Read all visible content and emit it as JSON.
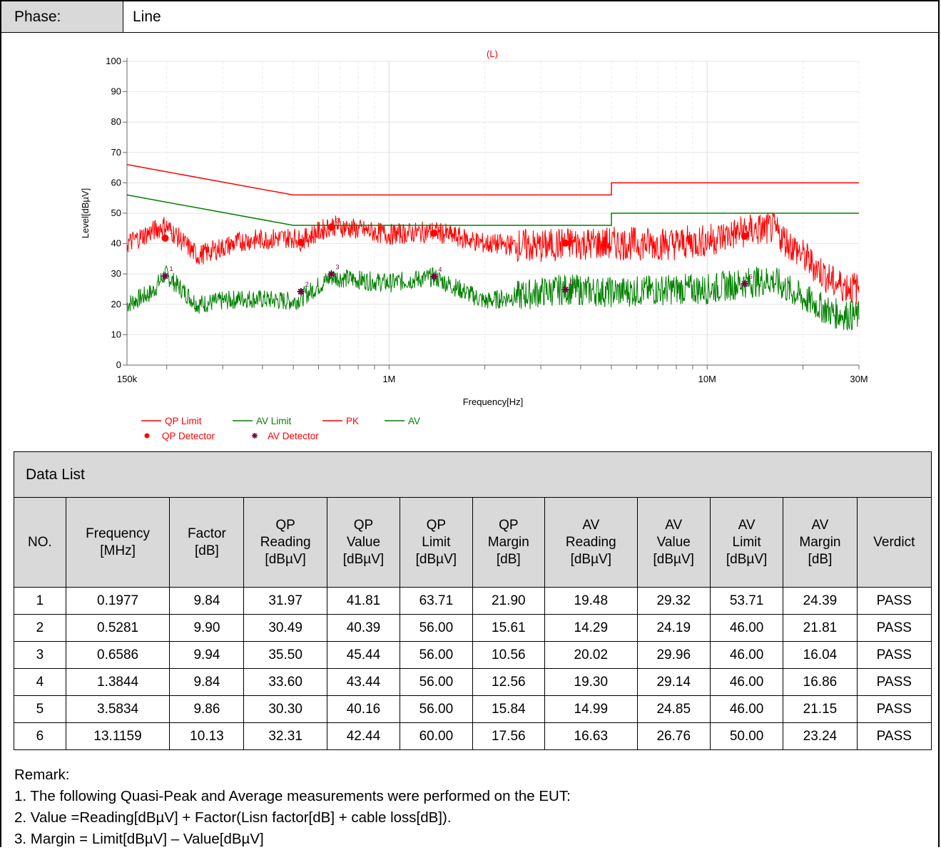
{
  "phase": {
    "label": "Phase:",
    "value": "Line"
  },
  "chart_data": {
    "type": "line",
    "title": "(L)",
    "xlabel": "Frequency[Hz]",
    "ylabel": "Level[dBµV]",
    "x_scale": "log",
    "xlim": [
      150000,
      30000000
    ],
    "ylim": [
      0,
      100
    ],
    "x_ticks": [
      {
        "value": 150000,
        "label": "150k"
      },
      {
        "value": 1000000,
        "label": "1M"
      },
      {
        "value": 10000000,
        "label": "10M"
      },
      {
        "value": 30000000,
        "label": "30M"
      }
    ],
    "y_ticks": [
      "0",
      "10",
      "20",
      "30",
      "40",
      "50",
      "60",
      "70",
      "80",
      "90",
      "100"
    ],
    "grid": true,
    "legend_position": "bottom-left",
    "colors": {
      "qp": "#ff0000",
      "av": "#008000",
      "av_marker": "#6b0a3c"
    },
    "series": [
      {
        "name": "QP Limit",
        "color": "#ff0000",
        "x": [
          150000,
          500000,
          5000000,
          5000000,
          30000000
        ],
        "values": [
          66,
          56,
          56,
          60,
          60
        ]
      },
      {
        "name": "AV Limit",
        "color": "#008000",
        "x": [
          150000,
          500000,
          5000000,
          5000000,
          30000000
        ],
        "values": [
          56,
          46,
          46,
          50,
          50
        ]
      },
      {
        "name": "PK",
        "color": "#ff0000",
        "x": [
          150000,
          180000,
          197700,
          250000,
          350000,
          500000,
          528100,
          658600,
          1000000,
          1384400,
          2000000,
          3000000,
          3583400,
          5000000,
          8000000,
          10000000,
          13000000,
          16000000,
          20000000,
          25000000,
          30000000
        ],
        "values": [
          40,
          44,
          46,
          36,
          41,
          42,
          41,
          46,
          43,
          44,
          40,
          39,
          40,
          40,
          40,
          41,
          44,
          45,
          36,
          27,
          25
        ]
      },
      {
        "name": "AV",
        "color": "#008000",
        "x": [
          150000,
          180000,
          197700,
          250000,
          350000,
          500000,
          528100,
          658600,
          1000000,
          1384400,
          2000000,
          3000000,
          3583400,
          5000000,
          8000000,
          10000000,
          13000000,
          16000000,
          20000000,
          25000000,
          30000000
        ],
        "values": [
          20,
          24,
          30,
          20,
          22,
          21,
          22,
          29,
          27,
          29,
          21,
          24,
          25,
          24,
          25,
          25,
          27,
          28,
          22,
          17,
          16
        ]
      },
      {
        "name": "QP Detector",
        "color": "#ff0000",
        "x": [
          197700,
          528100,
          658600,
          1384400,
          3583400,
          13115900
        ],
        "values": [
          41.81,
          40.39,
          45.44,
          43.44,
          40.16,
          42.44
        ]
      },
      {
        "name": "AV Detector",
        "color": "#6b0a3c",
        "x": [
          197700,
          528100,
          658600,
          1384400,
          3583400,
          13115900
        ],
        "values": [
          29.32,
          24.19,
          29.96,
          29.14,
          24.85,
          26.76
        ]
      }
    ],
    "marker_labels": [
      "1",
      "2",
      "3",
      "4",
      "5",
      "6"
    ]
  },
  "legend": {
    "qp_limit": "QP Limit",
    "av_limit": "AV Limit",
    "pk": "PK",
    "av": "AV",
    "qp_detector": "QP Detector",
    "av_detector": "AV Detector"
  },
  "table": {
    "title": "Data List",
    "headers": [
      [
        "NO."
      ],
      [
        "Frequency",
        "[MHz]"
      ],
      [
        "Factor",
        "[dB]"
      ],
      [
        "QP",
        "Reading",
        "[dBµV]"
      ],
      [
        "QP",
        "Value",
        "[dBµV]"
      ],
      [
        "QP",
        "Limit",
        "[dBµV]"
      ],
      [
        "QP",
        "Margin",
        "[dB]"
      ],
      [
        "AV",
        "Reading",
        "[dBµV]"
      ],
      [
        "AV",
        "Value",
        "[dBµV]"
      ],
      [
        "AV",
        "Limit",
        "[dBµV]"
      ],
      [
        "AV",
        "Margin",
        "[dB]"
      ],
      [
        "Verdict"
      ]
    ],
    "rows": [
      [
        "1",
        "0.1977",
        "9.84",
        "31.97",
        "41.81",
        "63.71",
        "21.90",
        "19.48",
        "29.32",
        "53.71",
        "24.39",
        "PASS"
      ],
      [
        "2",
        "0.5281",
        "9.90",
        "30.49",
        "40.39",
        "56.00",
        "15.61",
        "14.29",
        "24.19",
        "46.00",
        "21.81",
        "PASS"
      ],
      [
        "3",
        "0.6586",
        "9.94",
        "35.50",
        "45.44",
        "56.00",
        "10.56",
        "20.02",
        "29.96",
        "46.00",
        "16.04",
        "PASS"
      ],
      [
        "4",
        "1.3844",
        "9.84",
        "33.60",
        "43.44",
        "56.00",
        "12.56",
        "19.30",
        "29.14",
        "46.00",
        "16.86",
        "PASS"
      ],
      [
        "5",
        "3.5834",
        "9.86",
        "30.30",
        "40.16",
        "56.00",
        "15.84",
        "14.99",
        "24.85",
        "46.00",
        "21.15",
        "PASS"
      ],
      [
        "6",
        "13.1159",
        "10.13",
        "32.31",
        "42.44",
        "60.00",
        "17.56",
        "16.63",
        "26.76",
        "50.00",
        "23.24",
        "PASS"
      ]
    ]
  },
  "remarks": [
    "Remark:",
    "1. The following Quasi-Peak and Average measurements were performed on the EUT:",
    "2. Value =Reading[dBµV] + Factor(Lisn factor[dB] + cable loss[dB]).",
    "3. Margin = Limit[dBµV] – Value[dBµV]"
  ]
}
